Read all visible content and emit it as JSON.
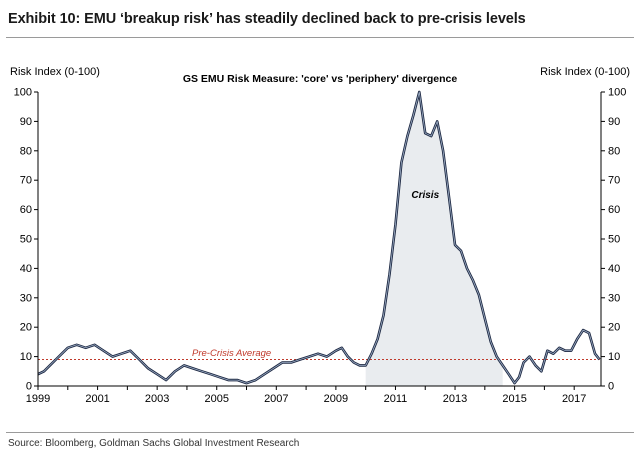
{
  "header": {
    "title": "Exhibit 10: EMU ‘breakup risk’ has steadily declined back to pre-crisis levels"
  },
  "footer": {
    "source": "Source: Bloomberg, Goldman Sachs Global Investment Research"
  },
  "chart_data": {
    "type": "area",
    "title": "GS EMU Risk Measure: 'core' vs 'periphery' divergence",
    "ylabel_left": "Risk Index (0-100)",
    "ylabel_right": "Risk Index (0-100)",
    "xlim": [
      1999,
      2017.9
    ],
    "ylim": [
      0,
      100
    ],
    "x_ticks": [
      1999,
      2001,
      2003,
      2005,
      2007,
      2009,
      2011,
      2013,
      2015,
      2017
    ],
    "y_ticks": [
      0,
      10,
      20,
      30,
      40,
      50,
      60,
      70,
      80,
      90,
      100
    ],
    "grid": false,
    "reference_line": {
      "value": 9,
      "label": "Pre-Crisis Average",
      "color": "#c0392b"
    },
    "annotations": [
      {
        "text": "Crisis",
        "x": 2012.0,
        "y": 64
      }
    ],
    "shaded_region": {
      "from": 2010.0,
      "to": 2014.6
    },
    "series": [
      {
        "color": "#1f2a44",
        "x": [
          1999.0,
          1999.2,
          1999.4,
          1999.6,
          1999.8,
          2000.0,
          2000.3,
          2000.6,
          2000.9,
          2001.2,
          2001.5,
          2001.8,
          2002.1,
          2002.4,
          2002.7,
          2003.0,
          2003.3,
          2003.6,
          2003.9,
          2004.2,
          2004.5,
          2004.8,
          2005.1,
          2005.4,
          2005.7,
          2006.0,
          2006.3,
          2006.6,
          2006.9,
          2007.2,
          2007.5,
          2007.8,
          2008.1,
          2008.4,
          2008.7,
          2009.0,
          2009.2,
          2009.4,
          2009.6,
          2009.8,
          2010.0,
          2010.2,
          2010.4,
          2010.6,
          2010.8,
          2011.0,
          2011.2,
          2011.4,
          2011.6,
          2011.8,
          2012.0,
          2012.2,
          2012.4,
          2012.6,
          2012.8,
          2013.0,
          2013.2,
          2013.4,
          2013.6,
          2013.8,
          2014.0,
          2014.2,
          2014.4,
          2014.6,
          2014.8,
          2015.0,
          2015.15,
          2015.3,
          2015.5,
          2015.7,
          2015.9,
          2016.1,
          2016.3,
          2016.5,
          2016.7,
          2016.9,
          2017.1,
          2017.3,
          2017.5,
          2017.7,
          2017.85
        ],
        "values": [
          4,
          5,
          7,
          9,
          11,
          13,
          14,
          13,
          14,
          12,
          10,
          11,
          12,
          9,
          6,
          4,
          2,
          5,
          7,
          6,
          5,
          4,
          3,
          2,
          2,
          1,
          2,
          4,
          6,
          8,
          8,
          9,
          10,
          11,
          10,
          12,
          13,
          10,
          8,
          7,
          7,
          11,
          16,
          24,
          38,
          55,
          76,
          85,
          92,
          100,
          86,
          85,
          90,
          80,
          64,
          48,
          46,
          40,
          36,
          31,
          23,
          15,
          10,
          7,
          4,
          1,
          3,
          8,
          10,
          7,
          5,
          12,
          11,
          13,
          12,
          12,
          16,
          19,
          18,
          11,
          9
        ]
      }
    ]
  }
}
